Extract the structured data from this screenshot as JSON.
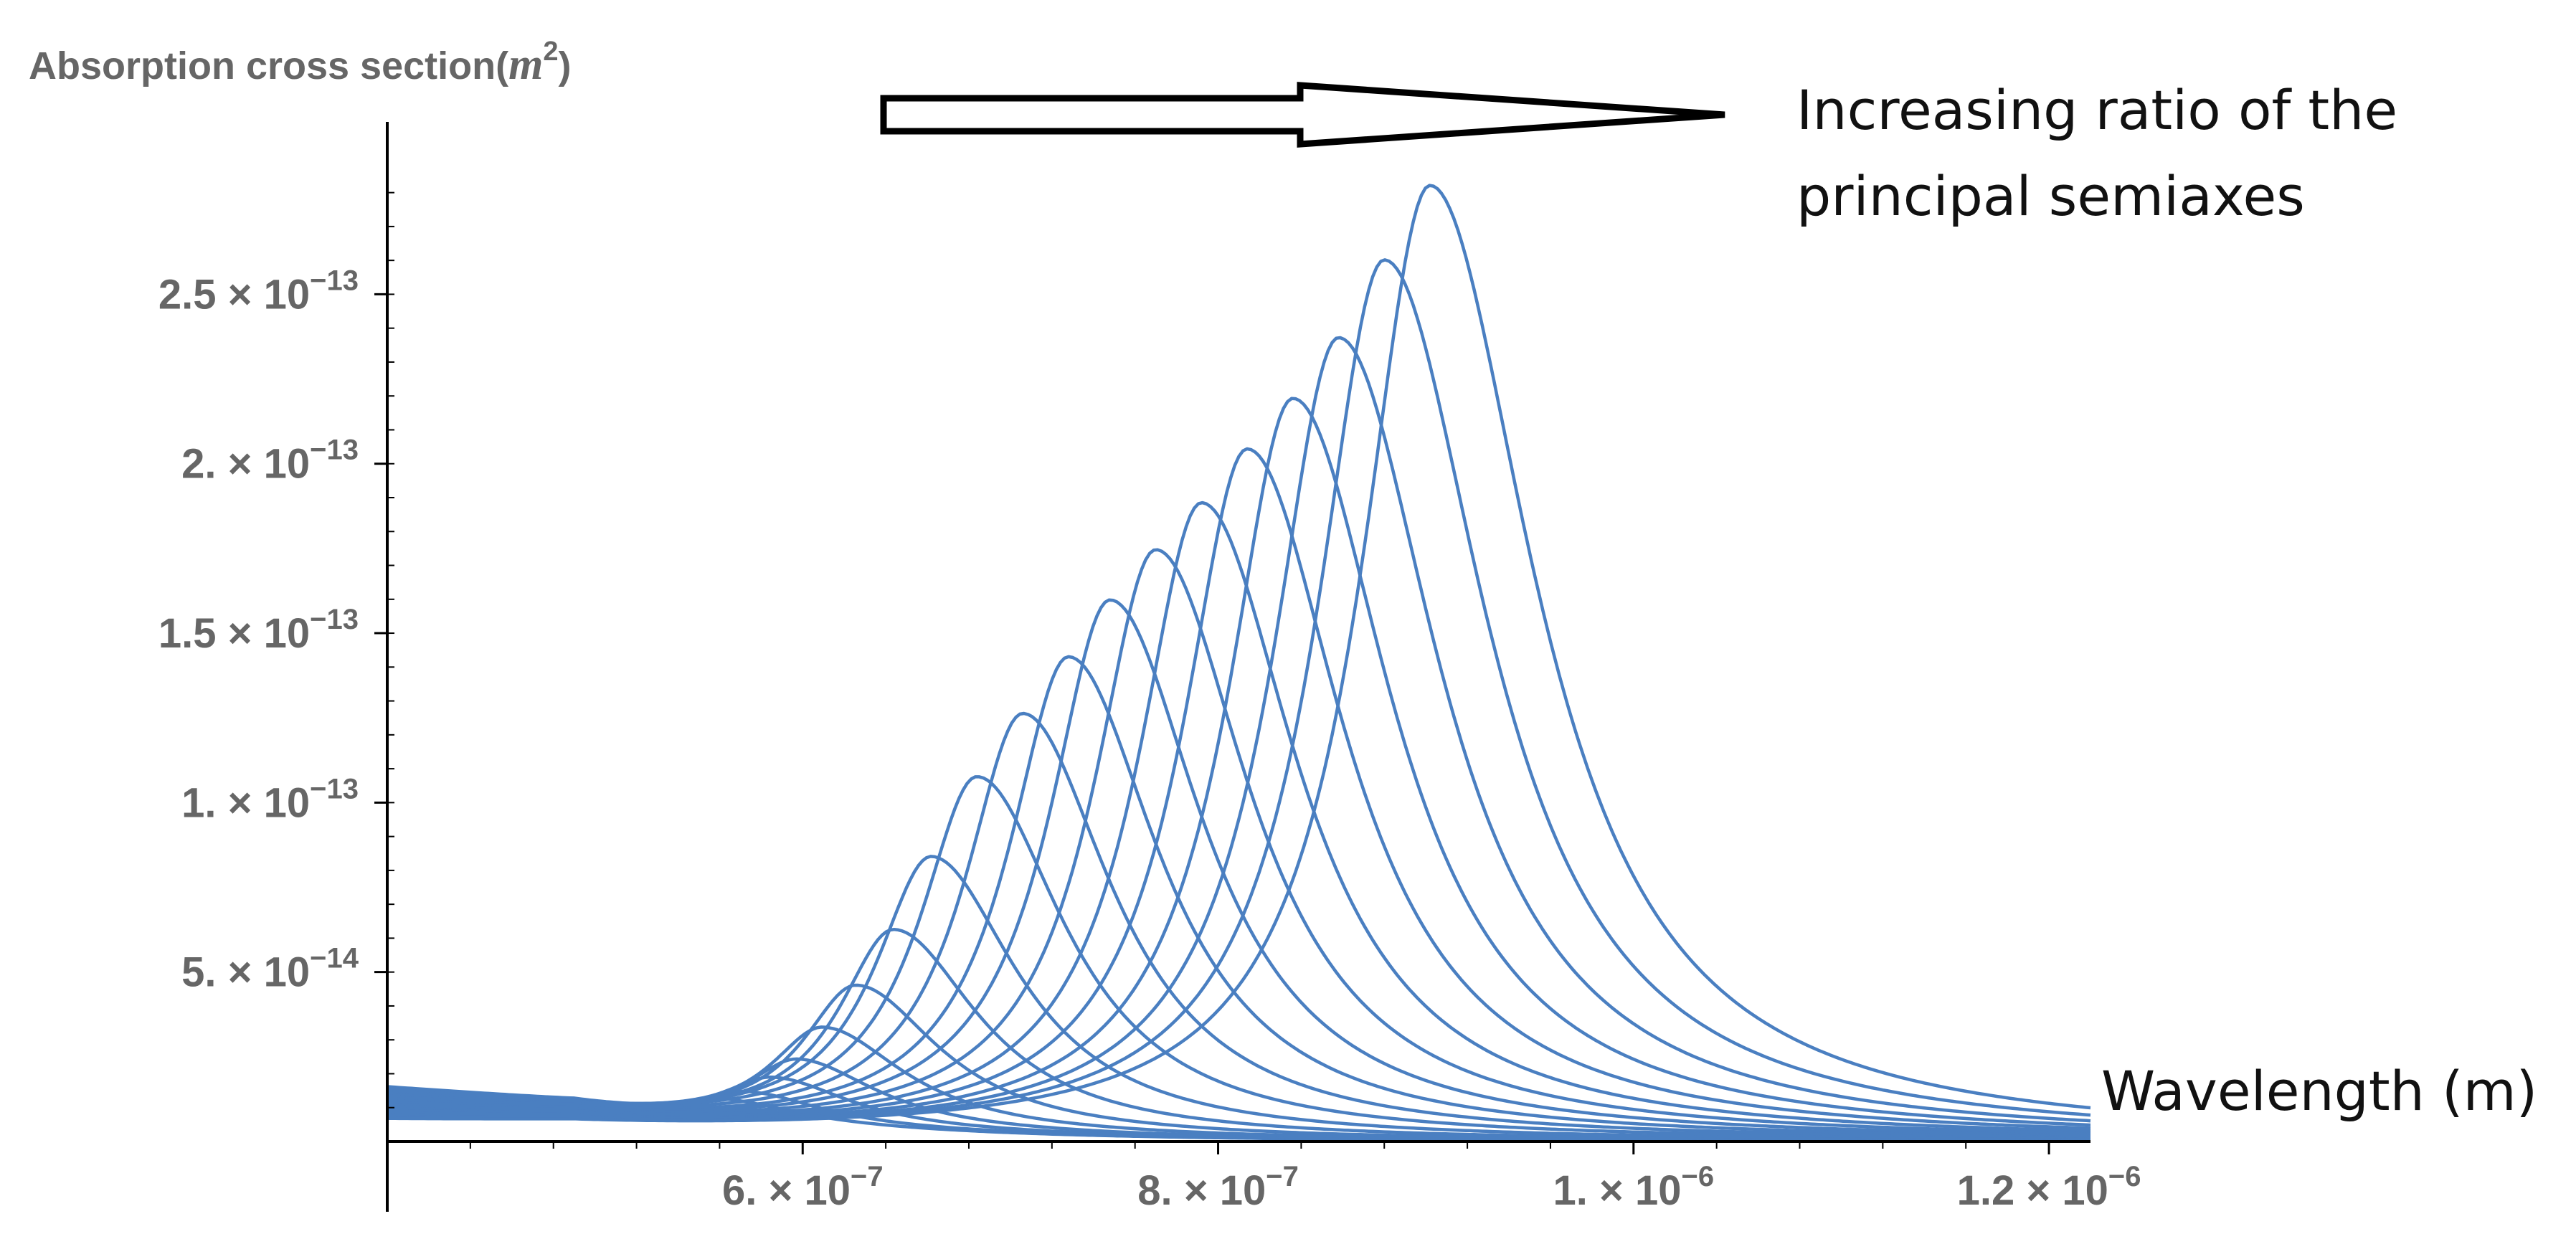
{
  "chart_data": {
    "type": "line",
    "title": "",
    "ylabel": "Absorption cross section",
    "ylabel_unit": "m",
    "ylabel_unit_power": "2",
    "xlabel": "Wavelength (m)",
    "annotation": "Increasing ratio of the principal semiaxes",
    "annotation_lines": [
      "Increasing ratio of the",
      "principal semiaxes"
    ],
    "xlim": [
      4e-07,
      1.22e-06
    ],
    "ylim": [
      0,
      2.85e-13
    ],
    "x_ticks": [
      {
        "value": 6e-07,
        "mantissa": "6.",
        "exp": "−7"
      },
      {
        "value": 8e-07,
        "mantissa": "8.",
        "exp": "−7"
      },
      {
        "value": 1e-06,
        "mantissa": "1.",
        "exp": "−6"
      },
      {
        "value": 1.2e-06,
        "mantissa": "1.2",
        "exp": "−6"
      }
    ],
    "y_ticks": [
      {
        "value": 5e-14,
        "mantissa": "5.",
        "exp": "−14"
      },
      {
        "value": 1e-13,
        "mantissa": "1.",
        "exp": "−13"
      },
      {
        "value": 1.5e-13,
        "mantissa": "1.5",
        "exp": "−13"
      },
      {
        "value": 2e-13,
        "mantissa": "2.",
        "exp": "−13"
      },
      {
        "value": 2.5e-13,
        "mantissa": "2.5",
        "exp": "−13"
      }
    ],
    "grid": false,
    "legend": "none",
    "line_color": "#4a7fc1",
    "series": [
      {
        "peak_x": 5.63e-07,
        "peak_y": 6e-15
      },
      {
        "peak_x": 5.74e-07,
        "peak_y": 9e-15
      },
      {
        "peak_x": 5.86e-07,
        "peak_y": 1.4e-14
      },
      {
        "peak_x": 5.98e-07,
        "peak_y": 2e-14
      },
      {
        "peak_x": 6.1e-07,
        "peak_y": 3e-14
      },
      {
        "peak_x": 6.26e-07,
        "peak_y": 4.3e-14
      },
      {
        "peak_x": 6.44e-07,
        "peak_y": 6e-14
      },
      {
        "peak_x": 6.62e-07,
        "peak_y": 8.2e-14
      },
      {
        "peak_x": 6.84e-07,
        "peak_y": 1.06e-13
      },
      {
        "peak_x": 7.06e-07,
        "peak_y": 1.25e-13
      },
      {
        "peak_x": 7.28e-07,
        "peak_y": 1.42e-13
      },
      {
        "peak_x": 7.48e-07,
        "peak_y": 1.59e-13
      },
      {
        "peak_x": 7.7e-07,
        "peak_y": 1.74e-13
      },
      {
        "peak_x": 7.92e-07,
        "peak_y": 1.88e-13
      },
      {
        "peak_x": 8.14e-07,
        "peak_y": 2.04e-13
      },
      {
        "peak_x": 8.36e-07,
        "peak_y": 2.19e-13
      },
      {
        "peak_x": 8.58e-07,
        "peak_y": 2.37e-13
      },
      {
        "peak_x": 8.8e-07,
        "peak_y": 2.6e-13
      },
      {
        "peak_x": 9.02e-07,
        "peak_y": 2.82e-13
      }
    ]
  }
}
